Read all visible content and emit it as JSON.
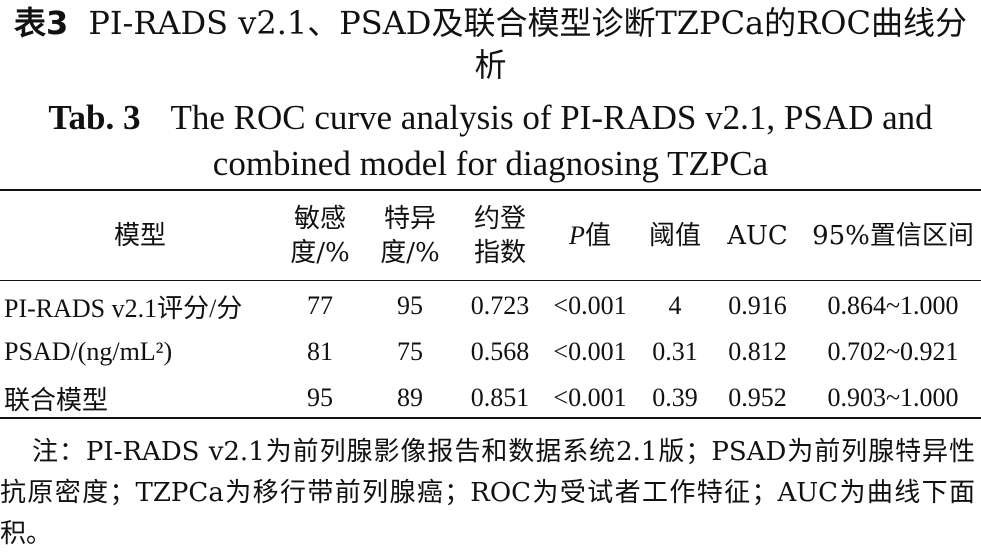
{
  "caption_cn": {
    "label": "表3",
    "text": "PI-RADS v2.1、PSAD及联合模型诊断TZPCa的ROC曲线分析"
  },
  "caption_en": {
    "label": "Tab. 3",
    "text": "The ROC curve analysis of PI-RADS v2.1, PSAD and combined model for diagnosing TZPCa"
  },
  "table": {
    "headers": {
      "model": "模型",
      "sensitivity": [
        "敏感",
        "度/%"
      ],
      "specificity": [
        "特异",
        "度/%"
      ],
      "youden": [
        "约登",
        "指数"
      ],
      "p_italic": "P",
      "p_suffix": "值",
      "threshold": "阈值",
      "auc": "AUC",
      "ci": "95%置信区间"
    },
    "rows": [
      {
        "model": "PI-RADS v2.1评分/分",
        "sensitivity": "77",
        "specificity": "95",
        "youden": "0.723",
        "p": "<0.001",
        "threshold": "4",
        "auc": "0.916",
        "ci": "0.864~1.000"
      },
      {
        "model": "PSAD/(ng/mL²)",
        "sensitivity": "81",
        "specificity": "75",
        "youden": "0.568",
        "p": "<0.001",
        "threshold": "0.31",
        "auc": "0.812",
        "ci": "0.702~0.921"
      },
      {
        "model": "联合模型",
        "sensitivity": "95",
        "specificity": "89",
        "youden": "0.851",
        "p": "<0.001",
        "threshold": "0.39",
        "auc": "0.952",
        "ci": "0.903~1.000"
      }
    ]
  },
  "note": "注：PI-RADS v2.1为前列腺影像报告和数据系统2.1版；PSAD为前列腺特异性抗原密度；TZPCa为移行带前列腺癌；ROC为受试者工作特征；AUC为曲线下面积。"
}
